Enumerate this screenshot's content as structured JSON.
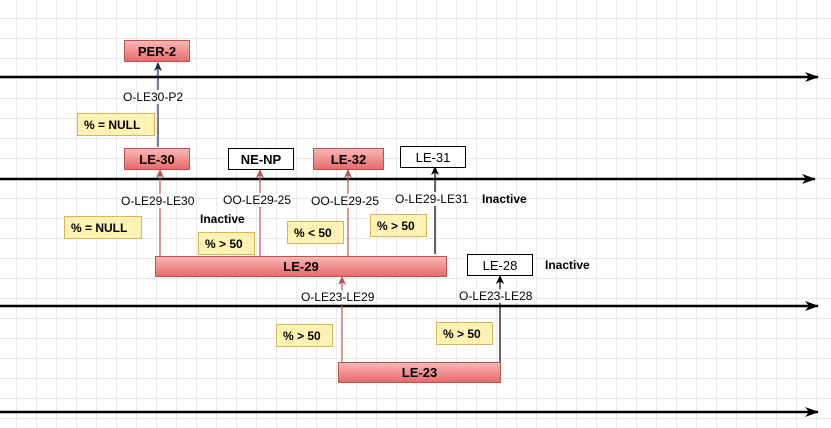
{
  "nodes": {
    "per2": "PER-2",
    "le30": "LE-30",
    "nenp": "NE-NP",
    "le32": "LE-32",
    "le31": "LE-31",
    "le29": "LE-29",
    "le28": "LE-28",
    "le23": "LE-23"
  },
  "edges": {
    "ole30p2": "O-LE30-P2",
    "ole29le30": "O-LE29-LE30",
    "ooole29_25_nenp": "OO-LE29-25",
    "ooole29_25_le32": "OO-LE29-25",
    "ole29le31": "O-LE29-LE31",
    "ole23le29": "O-LE23-LE29",
    "ole23le28": "O-LE23-LE28"
  },
  "conditions": {
    "null_top": "% = NULL",
    "null_mid": "% = NULL",
    "gt50_a": "% > 50",
    "lt50": "% < 50",
    "gt50_b": "% > 50",
    "gt50_c": "% > 50",
    "gt50_d": "% > 50"
  },
  "statuses": {
    "inactive_nenp": "Inactive",
    "inactive_le31": "Inactive",
    "inactive_le28": "Inactive"
  },
  "colors": {
    "red_fill_top": "#f8b6b6",
    "red_fill_bottom": "#ea6b6b",
    "red_stroke": "#b85450",
    "note_fill": "#fff2b3",
    "note_stroke": "#d6b656",
    "navy_arrow": "#1b2a4a"
  }
}
